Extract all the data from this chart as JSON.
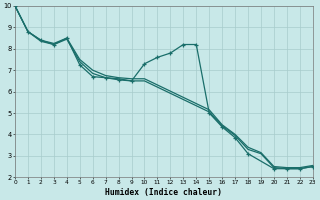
{
  "bg_color": "#c8e8e8",
  "grid_color": "#a8cccc",
  "line_color": "#1a6e6a",
  "xlabel": "Humidex (Indice chaleur)",
  "xlim": [
    0,
    23
  ],
  "ylim": [
    2,
    10
  ],
  "xtick_vals": [
    0,
    1,
    2,
    3,
    4,
    5,
    6,
    7,
    8,
    9,
    10,
    11,
    12,
    13,
    14,
    15,
    16,
    17,
    18,
    19,
    20,
    21,
    22,
    23
  ],
  "ytick_vals": [
    2,
    3,
    4,
    5,
    6,
    7,
    8,
    9,
    10
  ],
  "wavy_x": [
    0,
    1,
    2,
    3,
    4,
    5,
    6,
    7,
    8,
    9,
    10,
    11,
    12,
    13,
    14,
    15,
    16,
    17,
    18,
    20,
    21,
    22,
    23
  ],
  "wavy_y": [
    10.0,
    8.8,
    8.4,
    8.2,
    8.5,
    7.25,
    6.7,
    6.65,
    6.55,
    6.5,
    7.3,
    7.6,
    7.8,
    8.2,
    8.2,
    5.0,
    4.35,
    3.85,
    3.1,
    2.4,
    2.4,
    2.4,
    2.5
  ],
  "line_a_x": [
    0,
    1,
    2,
    3,
    4,
    5,
    6,
    7,
    8,
    9,
    10,
    15,
    16,
    17,
    18,
    19,
    20,
    21,
    22,
    23
  ],
  "line_a_y": [
    10.0,
    8.8,
    8.35,
    8.2,
    8.45,
    7.4,
    6.85,
    6.65,
    6.6,
    6.5,
    6.5,
    5.05,
    4.4,
    3.95,
    3.3,
    3.1,
    2.45,
    2.4,
    2.4,
    2.5
  ],
  "line_b_x": [
    0,
    1,
    2,
    3,
    4,
    5,
    6,
    7,
    8,
    9,
    10,
    15,
    16,
    17,
    18,
    19,
    20,
    21,
    22,
    23
  ],
  "line_b_y": [
    10.0,
    8.8,
    8.4,
    8.25,
    8.5,
    7.5,
    7.0,
    6.75,
    6.65,
    6.6,
    6.6,
    5.15,
    4.45,
    4.0,
    3.4,
    3.15,
    2.5,
    2.45,
    2.45,
    2.55
  ]
}
